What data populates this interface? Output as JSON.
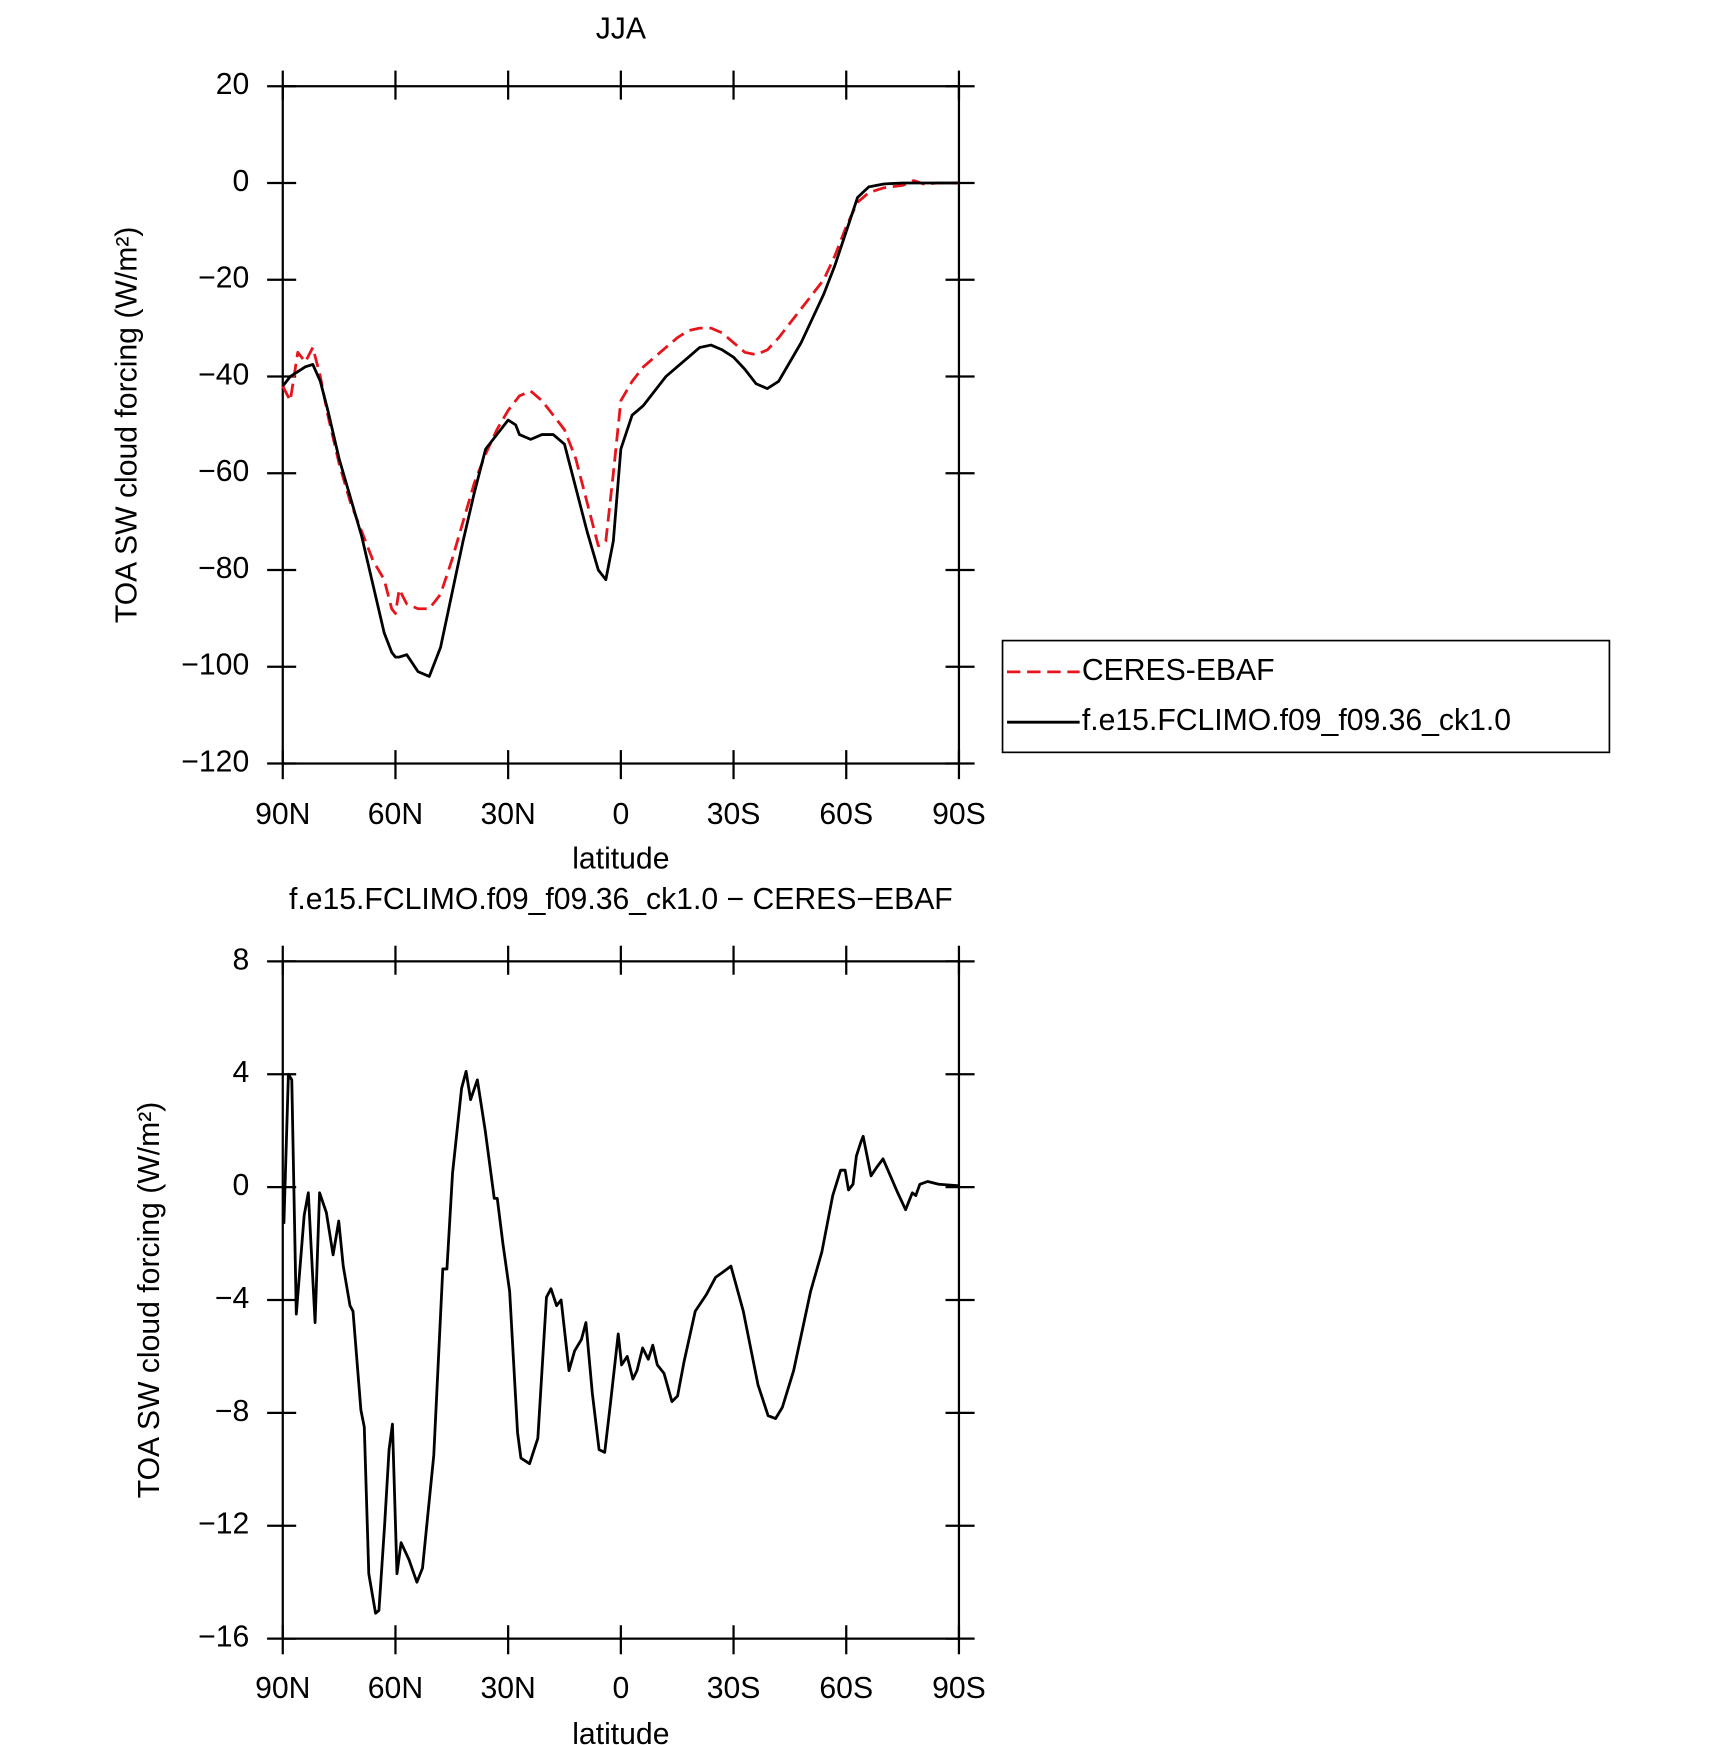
{
  "chart_data": [
    {
      "type": "line",
      "title": "JJA",
      "xlabel": "latitude",
      "ylabel": "TOA SW cloud forcing (W/m²)",
      "xlim": [
        90,
        -90
      ],
      "ylim": [
        -120,
        20
      ],
      "xticks": [
        {
          "value": 90,
          "label": "90N"
        },
        {
          "value": 60,
          "label": "60N"
        },
        {
          "value": 30,
          "label": "30N"
        },
        0,
        {
          "value": -30,
          "label": "30S"
        },
        {
          "value": -60,
          "label": "60S"
        },
        {
          "value": -90,
          "label": "90S"
        }
      ],
      "yticks": [
        -120,
        -100,
        -80,
        -60,
        -40,
        -20,
        0,
        20
      ],
      "legend": "right",
      "x": [
        90,
        88,
        86,
        84,
        82,
        80,
        78,
        75,
        72,
        69,
        66,
        63,
        61,
        60,
        59,
        57,
        54,
        51,
        48,
        45,
        42,
        39,
        36,
        33,
        30,
        28,
        27,
        24,
        21,
        18,
        15,
        12,
        9,
        6,
        4,
        2,
        0,
        -3,
        -6,
        -9,
        -12,
        -15,
        -18,
        -21,
        -24,
        -27,
        -30,
        -33,
        -36,
        -39,
        -42,
        -45,
        -48,
        -51,
        -54,
        -57,
        -60,
        -63,
        -66,
        -70,
        -75,
        -78,
        -81,
        -84,
        -90
      ],
      "series": [
        {
          "name": "CERES-EBAF",
          "color": "#e8141c",
          "dash": true,
          "values": [
            -42,
            -45,
            -35,
            -37,
            -34,
            -40,
            -48,
            -58,
            -66,
            -72,
            -78,
            -82,
            -88,
            -89,
            -84,
            -87,
            -88,
            -88,
            -85,
            -78,
            -70,
            -62,
            -56,
            -51,
            -47,
            -45,
            -44,
            -43,
            -45,
            -48,
            -51,
            -57,
            -66,
            -75,
            -74,
            -60,
            -45,
            -41,
            -38,
            -36,
            -34,
            -32,
            -30.5,
            -30,
            -30,
            -31,
            -33,
            -35,
            -35.5,
            -34.5,
            -32,
            -29,
            -26,
            -23,
            -20,
            -15,
            -9,
            -4,
            -2,
            -1,
            -0.5,
            0.5,
            -0.3,
            0,
            0
          ]
        },
        {
          "name": "f.e15.FCLIMO.f09_f09.36_ck1.0",
          "color": "#000000",
          "dash": false,
          "values": [
            -42,
            -40,
            -39,
            -38,
            -37.5,
            -41,
            -47,
            -57,
            -65,
            -73,
            -83,
            -93,
            -97,
            -98,
            -98,
            -97.5,
            -101,
            -102,
            -96,
            -85,
            -74,
            -64,
            -55,
            -52,
            -49,
            -50,
            -52,
            -53,
            -52,
            -52,
            -54,
            -63,
            -72,
            -80,
            -82,
            -74,
            -55,
            -48,
            -46,
            -43,
            -40,
            -38,
            -36,
            -34,
            -33.5,
            -34.5,
            -36,
            -38.5,
            -41.5,
            -42.5,
            -41,
            -37,
            -33,
            -28,
            -23,
            -17,
            -10,
            -3,
            -0.8,
            -0.2,
            0,
            0,
            0,
            0,
            0
          ]
        }
      ]
    },
    {
      "type": "line",
      "title": "f.e15.FCLIMO.f09_f09.36_ck1.0 − CERES−EBAF",
      "xlabel": "latitude",
      "ylabel": "TOA SW cloud forcing (W/m²)",
      "xlim": [
        90,
        -90
      ],
      "ylim": [
        -16,
        8
      ],
      "xticks": [
        {
          "value": 90,
          "label": "90N"
        },
        {
          "value": 60,
          "label": "60N"
        },
        {
          "value": 30,
          "label": "30N"
        },
        0,
        {
          "value": -30,
          "label": "30S"
        },
        {
          "value": -60,
          "label": "60S"
        },
        {
          "value": -90,
          "label": "90S"
        }
      ],
      "yticks": [
        -16,
        -12,
        -8,
        -4,
        0,
        4,
        8
      ],
      "x": [
        89.7,
        88.5,
        87.6,
        86.4,
        84.3,
        83.2,
        81.4,
        80.2,
        78.4,
        76.6,
        75.1,
        73.9,
        72.1,
        71.3,
        69.2,
        68.3,
        67.1,
        65.3,
        64.4,
        62.9,
        61.7,
        60.8,
        59.6,
        58.5,
        56.4,
        54.3,
        52.8,
        49.8,
        47.4,
        46.3,
        44.8,
        42.4,
        41.2,
        40,
        38.2,
        36.1,
        33.7,
        32.9,
        31.4,
        29.6,
        27.5,
        26.6,
        24.3,
        22.1,
        19.8,
        18.6,
        17.1,
        15.9,
        13.8,
        12.3,
        10.5,
        9.3,
        7.6,
        5.8,
        4.3,
        2.8,
        0.7,
        -0.2,
        -1.7,
        -3.2,
        -4.3,
        -5.8,
        -7.3,
        -8.5,
        -9.7,
        -11.5,
        -13.6,
        -15.1,
        -16.8,
        -19.8,
        -22.8,
        -25.2,
        -27.3,
        -29.3,
        -32.6,
        -36.5,
        -39.2,
        -41.2,
        -43,
        -46,
        -50.5,
        -53.5,
        -56.4,
        -58.5,
        -59.7,
        -60.6,
        -61.8,
        -62.7,
        -63.9,
        -64.5,
        -66.6,
        -68.1,
        -69.8,
        -73.7,
        -75.8,
        -77.6,
        -78.5,
        -79.6,
        -81.7,
        -84.6,
        -90
      ],
      "series": [
        {
          "color": "#000000",
          "dash": false,
          "values": [
            -1.3,
            4,
            3.8,
            -4.5,
            -1,
            -0.2,
            -4.8,
            -0.2,
            -0.9,
            -2.4,
            -1.2,
            -2.8,
            -4.2,
            -4.4,
            -7.9,
            -8.5,
            -13.7,
            -15.1,
            -15,
            -12,
            -9.3,
            -8.4,
            -13.7,
            -12.6,
            -13.2,
            -14,
            -13.5,
            -9.5,
            -2.9,
            -2.9,
            0.5,
            3.5,
            4.1,
            3.1,
            3.8,
            2,
            -0.4,
            -0.4,
            -2,
            -3.7,
            -8.7,
            -9.6,
            -9.8,
            -8.9,
            -3.9,
            -3.6,
            -4.2,
            -4,
            -6.5,
            -5.8,
            -5.4,
            -4.8,
            -7.3,
            -9.3,
            -9.4,
            -7.7,
            -5.2,
            -6.3,
            -6,
            -6.8,
            -6.5,
            -5.7,
            -6.1,
            -5.6,
            -6.3,
            -6.6,
            -7.6,
            -7.4,
            -6.2,
            -4.4,
            -3.8,
            -3.2,
            -3,
            -2.8,
            -4.4,
            -7,
            -8.1,
            -8.2,
            -7.8,
            -6.5,
            -3.7,
            -2.3,
            -0.3,
            0.6,
            0.6,
            -0.1,
            0.1,
            1.1,
            1.6,
            1.8,
            0.4,
            0.7,
            1,
            -0.2,
            -0.8,
            -0.2,
            -0.3,
            0.1,
            0.2,
            0.1,
            0.05
          ]
        }
      ]
    }
  ]
}
